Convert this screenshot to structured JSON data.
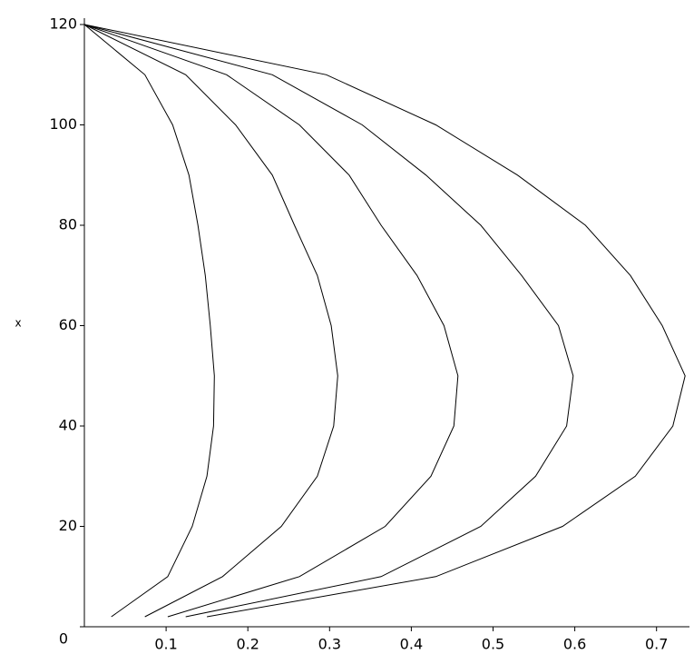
{
  "chart_data": {
    "type": "line",
    "orientation": "vertical",
    "x_axis_label": "x",
    "x": [
      120,
      110,
      100,
      90,
      80,
      70,
      60,
      50,
      40,
      30,
      20,
      10,
      2
    ],
    "series": [
      {
        "color": "#000000",
        "values": [
          0,
          0.074,
          0.108,
          0.128,
          0.139,
          0.148,
          0.154,
          0.159,
          0.158,
          0.15,
          0.132,
          0.102,
          0.033
        ]
      },
      {
        "color": "#000000",
        "values": [
          0,
          0.124,
          0.185,
          0.23,
          0.257,
          0.285,
          0.302,
          0.31,
          0.305,
          0.285,
          0.241,
          0.169,
          0.074
        ]
      },
      {
        "color": "#000000",
        "values": [
          0,
          0.174,
          0.263,
          0.324,
          0.363,
          0.407,
          0.44,
          0.457,
          0.452,
          0.424,
          0.368,
          0.263,
          0.102
        ]
      },
      {
        "color": "#000000",
        "values": [
          0,
          0.23,
          0.34,
          0.418,
          0.485,
          0.535,
          0.58,
          0.598,
          0.59,
          0.552,
          0.485,
          0.363,
          0.124
        ]
      },
      {
        "color": "#000000",
        "values": [
          0,
          0.296,
          0.43,
          0.53,
          0.613,
          0.668,
          0.707,
          0.735,
          0.72,
          0.674,
          0.585,
          0.43,
          0.15
        ]
      }
    ],
    "xlim": [
      0,
      120
    ],
    "xticks": [
      0,
      20,
      40,
      60,
      80,
      100,
      120
    ],
    "ylim": [
      0,
      0.74
    ],
    "yticks": [
      0.1,
      0.2,
      0.3,
      0.4,
      0.5,
      0.6,
      0.7
    ]
  }
}
